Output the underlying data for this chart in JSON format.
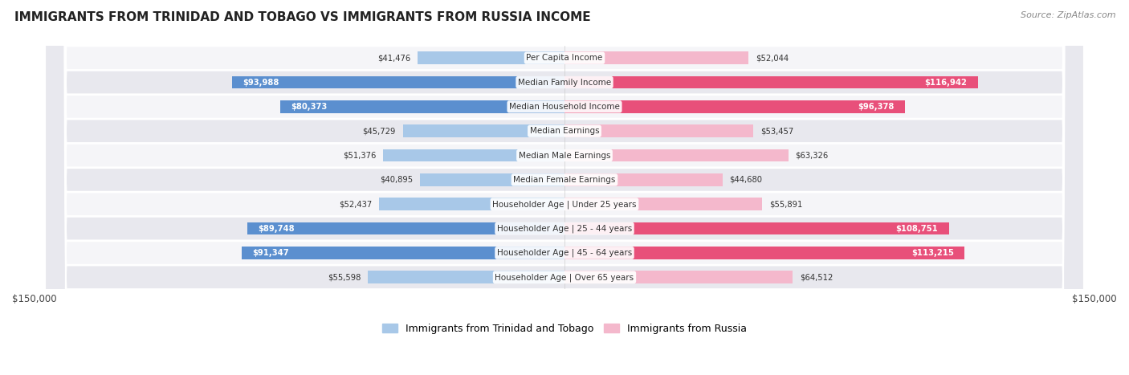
{
  "title": "IMMIGRANTS FROM TRINIDAD AND TOBAGO VS IMMIGRANTS FROM RUSSIA INCOME",
  "source": "Source: ZipAtlas.com",
  "categories": [
    "Per Capita Income",
    "Median Family Income",
    "Median Household Income",
    "Median Earnings",
    "Median Male Earnings",
    "Median Female Earnings",
    "Householder Age | Under 25 years",
    "Householder Age | 25 - 44 years",
    "Householder Age | 45 - 64 years",
    "Householder Age | Over 65 years"
  ],
  "tt_values": [
    41476,
    93988,
    80373,
    45729,
    51376,
    40895,
    52437,
    89748,
    91347,
    55598
  ],
  "ru_values": [
    52044,
    116942,
    96378,
    53457,
    63326,
    44680,
    55891,
    108751,
    113215,
    64512
  ],
  "tt_labels": [
    "$41,476",
    "$93,988",
    "$80,373",
    "$45,729",
    "$51,376",
    "$40,895",
    "$52,437",
    "$89,748",
    "$91,347",
    "$55,598"
  ],
  "ru_labels": [
    "$52,044",
    "$116,942",
    "$96,378",
    "$53,457",
    "$63,326",
    "$44,680",
    "$55,891",
    "$108,751",
    "$113,215",
    "$64,512"
  ],
  "max_val": 150000,
  "tt_color_light": "#a8c8e8",
  "tt_color_dark": "#5b8fcf",
  "ru_color_light": "#f4b8cc",
  "ru_color_dark": "#e8507a",
  "bg_color_light": "#f5f5f8",
  "bg_color_dark": "#e8e8ee",
  "bar_height": 0.52,
  "legend_tt": "Immigrants from Trinidad and Tobago",
  "legend_ru": "Immigrants from Russia",
  "tt_inside_threshold": 70000,
  "ru_inside_threshold": 70000
}
